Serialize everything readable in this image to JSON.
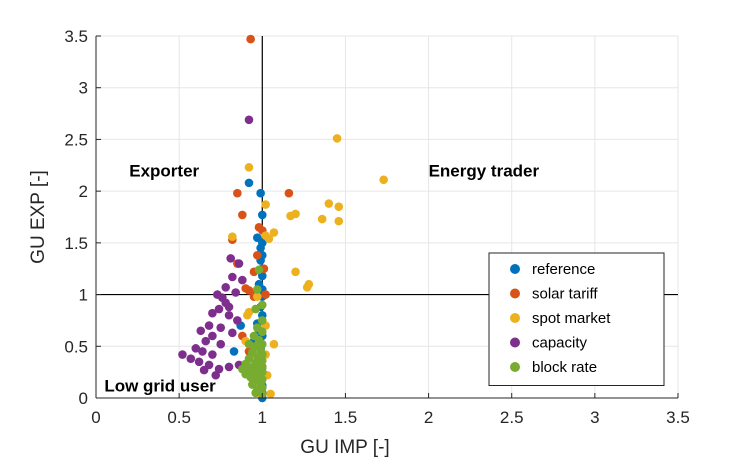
{
  "chart_data": {
    "type": "scatter",
    "xlabel": "GU IMP [-]",
    "ylabel": "GU EXP [-]",
    "xlim": [
      0,
      3.5
    ],
    "ylim": [
      0,
      3.5
    ],
    "grid": true,
    "x_ticks": [
      0,
      0.5,
      1,
      1.5,
      2,
      2.5,
      3,
      3.5
    ],
    "y_ticks": [
      0,
      0.5,
      1,
      1.5,
      2,
      2.5,
      3,
      3.5
    ],
    "x_tick_labels": [
      "0",
      "0.5",
      "1",
      "1.5",
      "2",
      "2.5",
      "3",
      "3.5"
    ],
    "y_tick_labels": [
      "0",
      "0.5",
      "1",
      "1.5",
      "2",
      "2.5",
      "3",
      "3.5"
    ],
    "reference_lines": {
      "x": 1,
      "y": 1
    },
    "legend_position": "lower-right",
    "annotations": [
      {
        "text": "Exporter",
        "x": 0.2,
        "y": 2.2
      },
      {
        "text": "Energy trader",
        "x": 2.0,
        "y": 2.2
      },
      {
        "text": "Low grid user",
        "x": 0.05,
        "y": 0.12
      }
    ],
    "series": [
      {
        "name": "reference",
        "color": "#0072BD",
        "points": [
          [
            0.92,
            2.08
          ],
          [
            0.99,
            1.98
          ],
          [
            1.0,
            1.77
          ],
          [
            0.97,
            1.55
          ],
          [
            1.0,
            1.5
          ],
          [
            0.99,
            1.45
          ],
          [
            1.0,
            1.38
          ],
          [
            0.99,
            1.33
          ],
          [
            1.0,
            1.25
          ],
          [
            1.0,
            1.18
          ],
          [
            0.98,
            1.1
          ],
          [
            1.0,
            1.05
          ],
          [
            1.0,
            0.98
          ],
          [
            0.99,
            0.88
          ],
          [
            1.0,
            0.8
          ],
          [
            0.97,
            0.72
          ],
          [
            0.98,
            0.65
          ],
          [
            0.87,
            0.7
          ],
          [
            0.83,
            0.45
          ],
          [
            1.0,
            0.6
          ],
          [
            0.99,
            0.48
          ],
          [
            1.0,
            0.4
          ],
          [
            0.98,
            0.3
          ],
          [
            1.0,
            0.2
          ],
          [
            1.0,
            0.12
          ],
          [
            1.0,
            0.05
          ],
          [
            1.0,
            0.0
          ],
          [
            0.95,
            0.55
          ],
          [
            1.0,
            0.25
          ]
        ]
      },
      {
        "name": "solar tariff",
        "color": "#D95319",
        "points": [
          [
            0.93,
            3.47
          ],
          [
            0.85,
            1.98
          ],
          [
            1.16,
            1.98
          ],
          [
            0.88,
            1.77
          ],
          [
            0.98,
            1.65
          ],
          [
            1.0,
            1.62
          ],
          [
            0.82,
            1.53
          ],
          [
            0.97,
            1.38
          ],
          [
            0.85,
            1.3
          ],
          [
            0.95,
            1.22
          ],
          [
            1.01,
            1.25
          ],
          [
            0.9,
            1.06
          ],
          [
            0.92,
            1.04
          ],
          [
            0.96,
            1.02
          ],
          [
            1.02,
            1.0
          ],
          [
            0.95,
            0.98
          ],
          [
            0.88,
            0.6
          ],
          [
            0.92,
            0.45
          ],
          [
            0.98,
            0.35
          ],
          [
            1.0,
            0.3
          ]
        ]
      },
      {
        "name": "spot market",
        "color": "#EDB120",
        "points": [
          [
            0.92,
            2.23
          ],
          [
            1.45,
            2.51
          ],
          [
            1.73,
            2.11
          ],
          [
            1.4,
            1.88
          ],
          [
            1.46,
            1.85
          ],
          [
            1.02,
            1.87
          ],
          [
            1.2,
            1.78
          ],
          [
            1.17,
            1.76
          ],
          [
            1.36,
            1.73
          ],
          [
            1.46,
            1.71
          ],
          [
            1.07,
            1.6
          ],
          [
            1.02,
            1.57
          ],
          [
            1.04,
            1.54
          ],
          [
            0.82,
            1.56
          ],
          [
            1.2,
            1.22
          ],
          [
            1.28,
            1.1
          ],
          [
            1.27,
            1.07
          ],
          [
            0.97,
            0.98
          ],
          [
            0.92,
            0.83
          ],
          [
            0.91,
            0.8
          ],
          [
            1.02,
            0.7
          ],
          [
            0.9,
            0.55
          ],
          [
            1.07,
            0.52
          ],
          [
            1.02,
            0.42
          ],
          [
            0.99,
            0.35
          ],
          [
            1.03,
            0.22
          ],
          [
            1.05,
            0.04
          ],
          [
            0.98,
            0.05
          ]
        ]
      },
      {
        "name": "capacity",
        "color": "#7E2F8E",
        "points": [
          [
            0.92,
            2.69
          ],
          [
            0.81,
            1.35
          ],
          [
            0.86,
            1.3
          ],
          [
            0.82,
            1.17
          ],
          [
            0.88,
            1.14
          ],
          [
            0.78,
            1.07
          ],
          [
            0.73,
            1.0
          ],
          [
            0.76,
            0.97
          ],
          [
            0.84,
            1.02
          ],
          [
            0.78,
            0.92
          ],
          [
            0.8,
            0.88
          ],
          [
            0.74,
            0.86
          ],
          [
            0.7,
            0.82
          ],
          [
            0.8,
            0.8
          ],
          [
            0.85,
            0.75
          ],
          [
            0.68,
            0.7
          ],
          [
            0.75,
            0.68
          ],
          [
            0.63,
            0.65
          ],
          [
            0.82,
            0.63
          ],
          [
            0.7,
            0.6
          ],
          [
            0.66,
            0.55
          ],
          [
            0.75,
            0.52
          ],
          [
            0.6,
            0.48
          ],
          [
            0.64,
            0.45
          ],
          [
            0.7,
            0.42
          ],
          [
            0.52,
            0.42
          ],
          [
            0.57,
            0.38
          ],
          [
            0.62,
            0.35
          ],
          [
            0.68,
            0.32
          ],
          [
            0.74,
            0.28
          ],
          [
            0.65,
            0.27
          ],
          [
            0.72,
            0.22
          ],
          [
            0.86,
            0.32
          ],
          [
            0.8,
            0.3
          ]
        ]
      },
      {
        "name": "block rate",
        "color": "#77AC30",
        "points": [
          [
            0.98,
            1.24
          ],
          [
            0.97,
            1.05
          ],
          [
            1.0,
            0.9
          ],
          [
            0.96,
            0.86
          ],
          [
            1.0,
            0.75
          ],
          [
            0.97,
            0.68
          ],
          [
            1.0,
            0.64
          ],
          [
            0.95,
            0.6
          ],
          [
            0.98,
            0.56
          ],
          [
            1.0,
            0.52
          ],
          [
            0.92,
            0.52
          ],
          [
            0.96,
            0.5
          ],
          [
            0.99,
            0.46
          ],
          [
            0.94,
            0.44
          ],
          [
            1.0,
            0.42
          ],
          [
            0.97,
            0.4
          ],
          [
            0.92,
            0.38
          ],
          [
            1.0,
            0.36
          ],
          [
            0.96,
            0.34
          ],
          [
            0.9,
            0.33
          ],
          [
            0.99,
            0.32
          ],
          [
            0.94,
            0.3
          ],
          [
            1.0,
            0.29
          ],
          [
            0.97,
            0.28
          ],
          [
            0.88,
            0.28
          ],
          [
            0.92,
            0.26
          ],
          [
            1.0,
            0.25
          ],
          [
            0.95,
            0.24
          ],
          [
            0.98,
            0.22
          ],
          [
            0.9,
            0.23
          ],
          [
            0.93,
            0.2
          ],
          [
            1.0,
            0.18
          ],
          [
            0.96,
            0.17
          ],
          [
            0.99,
            0.14
          ],
          [
            0.94,
            0.13
          ],
          [
            1.0,
            0.1
          ],
          [
            0.97,
            0.08
          ],
          [
            1.0,
            0.04
          ],
          [
            0.96,
            0.05
          ]
        ]
      }
    ]
  }
}
